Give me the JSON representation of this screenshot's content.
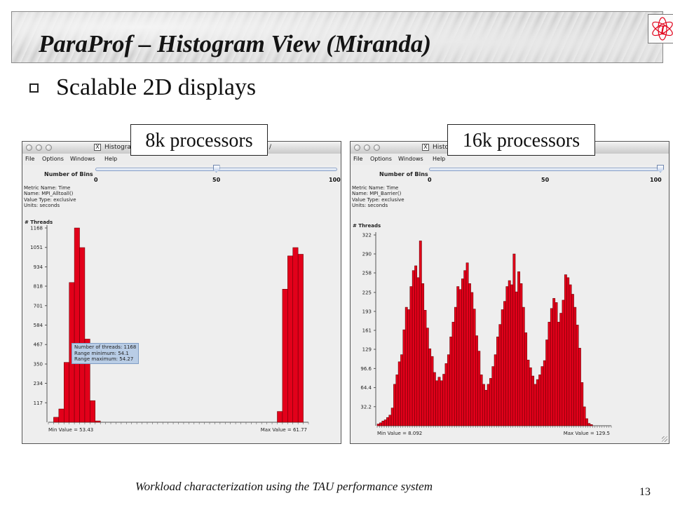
{
  "slide": {
    "title": "ParaProf  – Histogram View (Miranda)",
    "bullet": "Scalable 2D displays",
    "footer": "Workload characterization using the TAU performance system",
    "page_number": "13",
    "logo_glyph": "τ",
    "accent_red": "#e2001a"
  },
  "labels": {
    "left": "8k processors",
    "right": "16k processors"
  },
  "windows": [
    {
      "title": "Histogra",
      "title_tail": "/",
      "menu": [
        "File",
        "Options",
        "Windows",
        "Help"
      ],
      "bins_label": "Number of Bins",
      "bins_value_pct": 50,
      "slider_ticks": [
        "0",
        "50",
        "100"
      ],
      "metric": [
        "Metric Name: Time",
        "Name: MPI_Alltoall()",
        "Value Type: exclusive",
        "Units: seconds"
      ],
      "threads_label": "# Threads",
      "min_label": "Min Value = 53.43",
      "max_label": "Max Value = 61.77",
      "tooltip": [
        "Number of threads: 1168",
        "Range minimum: 54.1",
        "Range maximum: 54.27"
      ]
    },
    {
      "title": "Histo",
      "title_tail": "",
      "menu": [
        "File",
        "Options",
        "Windows",
        "Help"
      ],
      "bins_label": "Number of Bins",
      "bins_value_pct": 100,
      "slider_ticks": [
        "0",
        "50",
        "100"
      ],
      "metric": [
        "Metric Name: Time",
        "Name: MPI_Barrier()",
        "Value Type: exclusive",
        "Units: seconds"
      ],
      "threads_label": "# Threads",
      "min_label": "Min Value = 8.092",
      "max_label": "Max Value = 129.5",
      "tooltip": []
    }
  ],
  "chart_data": [
    {
      "type": "bar",
      "title": "",
      "ylabel": "# Threads",
      "ylim": [
        0,
        1168
      ],
      "y_ticks": [
        "117",
        "234",
        "350",
        "467",
        "584",
        "701",
        "818",
        "934",
        "1051",
        "1168"
      ],
      "y_tick_values": [
        117,
        234,
        350,
        467,
        584,
        701,
        818,
        934,
        1051,
        1168
      ],
      "xlim": [
        53.43,
        61.77
      ],
      "bins": 50,
      "values": [
        0,
        30,
        80,
        360,
        840,
        1168,
        1050,
        500,
        130,
        8,
        0,
        0,
        0,
        0,
        0,
        0,
        0,
        0,
        0,
        0,
        0,
        0,
        0,
        0,
        0,
        0,
        0,
        0,
        0,
        0,
        0,
        0,
        0,
        0,
        0,
        0,
        0,
        0,
        0,
        0,
        0,
        0,
        0,
        0,
        65,
        800,
        1000,
        1050,
        1010,
        0
      ],
      "min_value": 53.43,
      "max_value": 61.77
    },
    {
      "type": "bar",
      "title": "",
      "ylabel": "# Threads",
      "ylim": [
        0,
        322
      ],
      "y_ticks": [
        "32.2",
        "64.4",
        "96.6",
        "129",
        "161",
        "193",
        "225",
        "258",
        "290",
        "322"
      ],
      "y_tick_values": [
        32.2,
        64.4,
        96.6,
        129,
        161,
        193,
        225,
        258,
        290,
        322
      ],
      "xlim": [
        8.092,
        129.5
      ],
      "bins": 100,
      "values": [
        3,
        5,
        8,
        10,
        14,
        18,
        30,
        70,
        86,
        108,
        120,
        162,
        200,
        196,
        235,
        262,
        270,
        250,
        312,
        240,
        195,
        165,
        130,
        117,
        90,
        76,
        82,
        76,
        87,
        105,
        120,
        150,
        175,
        200,
        235,
        230,
        248,
        262,
        275,
        240,
        225,
        197,
        152,
        126,
        86,
        70,
        60,
        70,
        80,
        100,
        120,
        150,
        171,
        196,
        210,
        235,
        245,
        238,
        290,
        226,
        260,
        240,
        200,
        157,
        111,
        98,
        84,
        70,
        78,
        86,
        100,
        110,
        145,
        175,
        198,
        215,
        208,
        175,
        190,
        212,
        255,
        250,
        238,
        222,
        200,
        170,
        131,
        73,
        32,
        12,
        4,
        2,
        0,
        0,
        0,
        0,
        0,
        0,
        0,
        0
      ],
      "min_value": 8.092,
      "max_value": 129.5
    }
  ]
}
